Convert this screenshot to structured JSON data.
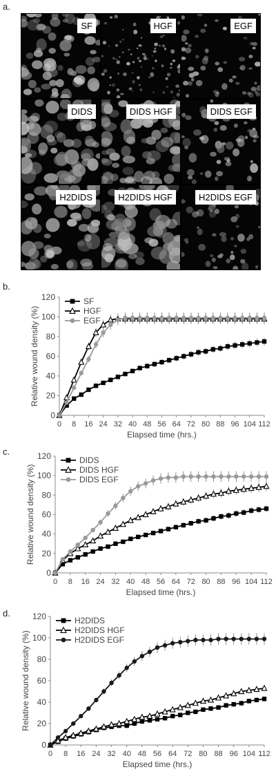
{
  "panels": {
    "a": "a.",
    "b": "b.",
    "c": "c.",
    "d": "d."
  },
  "micrographs": {
    "rows": [
      [
        "SF",
        "HGF",
        "EGF"
      ],
      [
        "DIDS",
        "DIDS HGF",
        "DIDS EGF"
      ],
      [
        "H2DIDS",
        "H2DIDS HGF",
        "H2DIDS EGF"
      ]
    ]
  },
  "colors": {
    "black": "#000000",
    "gray": "#9a9a9a",
    "dark": "#1a1a1a"
  },
  "chart_data": [
    {
      "type": "line",
      "panel": "b",
      "xlabel": "Elapsed time (hrs.)",
      "ylabel": "Relative wound density (%)",
      "ylim": [
        0,
        120
      ],
      "xlim": [
        0,
        112
      ],
      "yticks": [
        0,
        20,
        40,
        60,
        80,
        100,
        120
      ],
      "xticks": [
        0,
        8,
        16,
        24,
        32,
        40,
        48,
        56,
        64,
        72,
        80,
        88,
        96,
        104,
        112
      ],
      "grid": false,
      "legend": "top-left",
      "x": [
        0,
        4,
        8,
        12,
        16,
        20,
        24,
        28,
        32,
        36,
        40,
        44,
        48,
        52,
        56,
        60,
        64,
        68,
        72,
        76,
        80,
        84,
        88,
        92,
        96,
        100,
        104,
        108,
        112
      ],
      "series": [
        {
          "name": "SF",
          "marker": "square",
          "color": "#000000",
          "values": [
            0,
            10,
            17,
            21,
            26,
            30,
            33,
            36,
            39,
            42,
            45,
            48,
            50,
            52,
            54,
            56,
            58,
            60,
            62,
            64,
            65,
            67,
            68,
            70,
            71,
            72,
            73,
            74,
            75
          ]
        },
        {
          "name": "HGF",
          "marker": "triangle",
          "color": "#000000",
          "values": [
            0,
            18,
            36,
            54,
            70,
            84,
            92,
            97,
            98,
            98,
            98,
            98,
            98,
            98,
            98,
            98,
            98,
            98,
            98,
            98,
            98,
            98,
            98,
            98,
            98,
            98,
            98,
            98,
            98
          ]
        },
        {
          "name": "EGF",
          "marker": "circle",
          "color": "#9a9a9a",
          "values": [
            0,
            13,
            28,
            43,
            57,
            72,
            84,
            92,
            97,
            99,
            99,
            99,
            99,
            99,
            99,
            99,
            99,
            99,
            99,
            99,
            99,
            99,
            99,
            99,
            99,
            99,
            99,
            99,
            99
          ]
        }
      ]
    },
    {
      "type": "line",
      "panel": "c",
      "xlabel": "Elapsed time (hrs.)",
      "ylabel": "Relative wound density (%)",
      "ylim": [
        0,
        120
      ],
      "xlim": [
        0,
        112
      ],
      "yticks": [
        0,
        20,
        40,
        60,
        80,
        100,
        120
      ],
      "xticks": [
        0,
        8,
        16,
        24,
        32,
        40,
        48,
        56,
        64,
        72,
        80,
        88,
        96,
        104,
        112
      ],
      "grid": false,
      "legend": "top-left",
      "x": [
        0,
        4,
        8,
        12,
        16,
        20,
        24,
        28,
        32,
        36,
        40,
        44,
        48,
        52,
        56,
        60,
        64,
        68,
        72,
        76,
        80,
        84,
        88,
        92,
        96,
        100,
        104,
        108,
        112
      ],
      "series": [
        {
          "name": "DIDS",
          "marker": "square",
          "color": "#000000",
          "values": [
            0,
            9,
            13,
            16,
            19,
            22,
            25,
            27,
            30,
            32,
            35,
            37,
            39,
            41,
            43,
            45,
            47,
            49,
            51,
            53,
            54,
            56,
            58,
            59,
            61,
            62,
            64,
            65,
            66
          ]
        },
        {
          "name": "DIDS HGF",
          "marker": "triangle",
          "color": "#000000",
          "values": [
            0,
            13,
            20,
            25,
            29,
            33,
            38,
            42,
            46,
            50,
            54,
            57,
            60,
            63,
            66,
            68,
            71,
            73,
            75,
            77,
            79,
            81,
            82,
            84,
            85,
            86,
            87,
            88,
            89
          ]
        },
        {
          "name": "DIDS EGF",
          "marker": "circle",
          "color": "#9a9a9a",
          "values": [
            0,
            14,
            22,
            29,
            36,
            44,
            52,
            61,
            69,
            77,
            84,
            89,
            92,
            95,
            97,
            98,
            98,
            99,
            99,
            99,
            99,
            99,
            99,
            99,
            99,
            99,
            99,
            99,
            99
          ]
        }
      ]
    },
    {
      "type": "line",
      "panel": "d",
      "xlabel": "Elapsed time (hrs.)",
      "ylabel": "Relative wound density (%)",
      "ylim": [
        0,
        120
      ],
      "xlim": [
        0,
        112
      ],
      "yticks": [
        0,
        20,
        40,
        60,
        80,
        100,
        120
      ],
      "xticks": [
        0,
        8,
        16,
        24,
        32,
        40,
        48,
        56,
        64,
        72,
        80,
        88,
        96,
        104,
        112
      ],
      "grid": false,
      "legend": "top-left",
      "x": [
        0,
        4,
        8,
        12,
        16,
        20,
        24,
        28,
        32,
        36,
        40,
        44,
        48,
        52,
        56,
        60,
        64,
        68,
        72,
        76,
        80,
        84,
        88,
        92,
        96,
        100,
        104,
        108,
        112
      ],
      "series": [
        {
          "name": "H2DIDS",
          "marker": "square",
          "color": "#000000",
          "values": [
            0,
            3,
            6,
            8,
            10,
            12,
            14,
            16,
            17,
            18,
            18,
            20,
            22,
            23,
            24,
            25,
            27,
            28,
            30,
            31,
            33,
            34,
            35,
            37,
            38,
            39,
            41,
            42,
            43
          ]
        },
        {
          "name": "H2DIDS HGF",
          "marker": "triangle",
          "color": "#000000",
          "values": [
            0,
            4,
            7,
            9,
            11,
            13,
            15,
            17,
            19,
            20,
            22,
            24,
            26,
            27,
            29,
            31,
            33,
            35,
            37,
            39,
            41,
            42,
            44,
            46,
            48,
            50,
            51,
            52,
            53
          ]
        },
        {
          "name": "H2DIDS EGF",
          "marker": "circle",
          "color": "#1a1a1a",
          "values": [
            0,
            7,
            13,
            20,
            27,
            34,
            42,
            50,
            58,
            65,
            72,
            78,
            83,
            87,
            91,
            93,
            95,
            96,
            97,
            98,
            98,
            98,
            99,
            99,
            99,
            99,
            99,
            99,
            99
          ]
        }
      ]
    }
  ]
}
